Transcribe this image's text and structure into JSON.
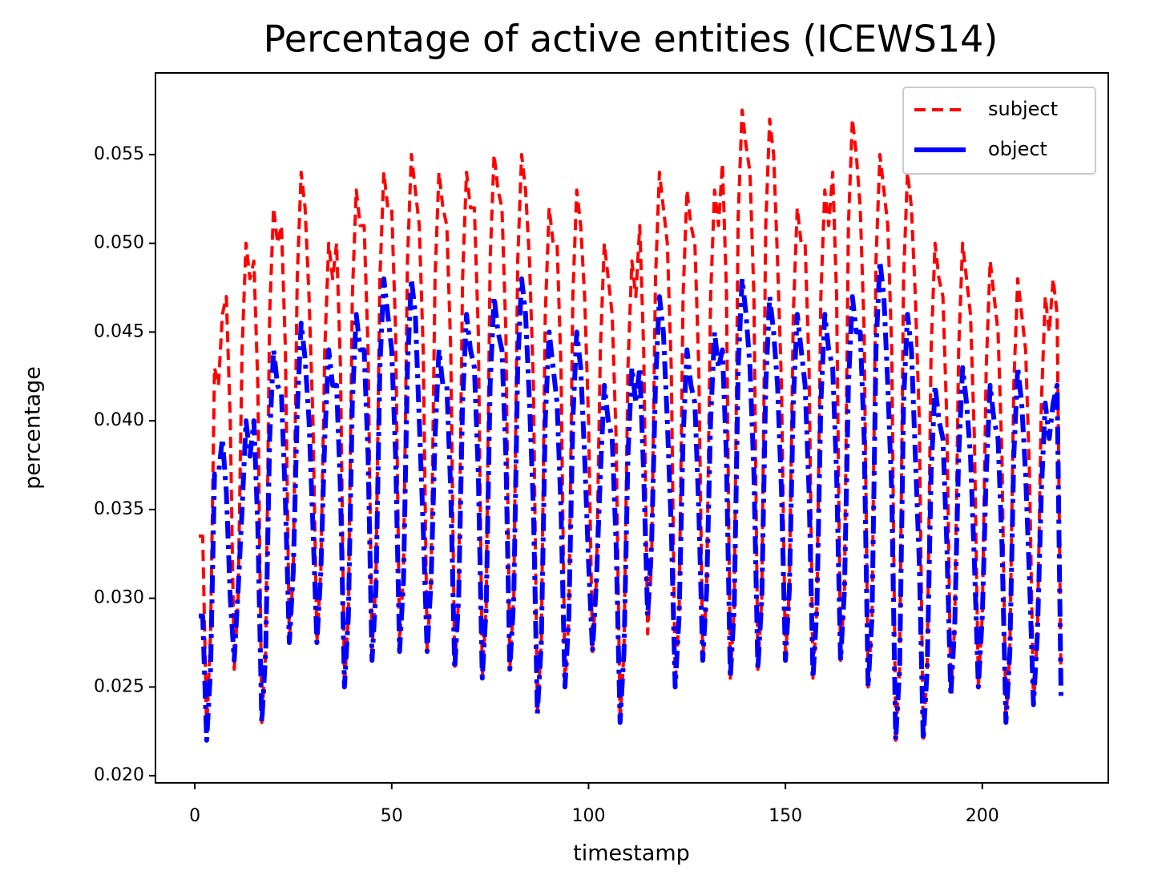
{
  "chart_data": {
    "type": "line",
    "title": "Percentage of active entities (ICEWS14)",
    "x_label": "timestamp",
    "y_label": "percentage",
    "xlim": [
      -10,
      232
    ],
    "ylim": [
      0.0196,
      0.0596
    ],
    "xticks": [
      0,
      50,
      100,
      150,
      200
    ],
    "yticks": [
      {
        "value": 0.02,
        "label": "0.020"
      },
      0.025,
      {
        "value": 0.03,
        "label": "0.030"
      },
      0.035,
      {
        "value": 0.04,
        "label": "0.040"
      },
      0.045,
      {
        "value": 0.05,
        "label": "0.050"
      },
      0.055
    ],
    "legend_position": "upper right",
    "grid": false,
    "x": [
      1,
      2,
      3,
      4,
      5,
      6,
      7,
      8,
      9,
      10,
      11,
      12,
      13,
      14,
      15,
      16,
      17,
      18,
      19,
      20,
      21,
      22,
      23,
      24,
      25,
      26,
      27,
      28,
      29,
      30,
      31,
      32,
      33,
      34,
      35,
      36,
      37,
      38,
      39,
      40,
      41,
      42,
      43,
      44,
      45,
      46,
      47,
      48,
      49,
      50,
      51,
      52,
      53,
      54,
      55,
      56,
      57,
      58,
      59,
      60,
      61,
      62,
      63,
      64,
      65,
      66,
      67,
      68,
      69,
      70,
      71,
      72,
      73,
      74,
      75,
      76,
      77,
      78,
      79,
      80,
      81,
      82,
      83,
      84,
      85,
      86,
      87,
      88,
      89,
      90,
      91,
      92,
      93,
      94,
      95,
      96,
      97,
      98,
      99,
      100,
      101,
      102,
      103,
      104,
      105,
      106,
      107,
      108,
      109,
      110,
      111,
      112,
      113,
      114,
      115,
      116,
      117,
      118,
      119,
      120,
      121,
      122,
      123,
      124,
      125,
      126,
      127,
      128,
      129,
      130,
      131,
      132,
      133,
      134,
      135,
      136,
      137,
      138,
      139,
      140,
      141,
      142,
      143,
      144,
      145,
      146,
      147,
      148,
      149,
      150,
      151,
      152,
      153,
      154,
      155,
      156,
      157,
      158,
      159,
      160,
      161,
      162,
      163,
      164,
      165,
      166,
      167,
      168,
      169,
      170,
      171,
      172,
      173,
      174,
      175,
      176,
      177,
      178,
      179,
      180,
      181,
      182,
      183,
      184,
      185,
      186,
      187,
      188,
      189,
      190,
      191,
      192,
      193,
      194,
      195,
      196,
      197,
      198,
      199,
      200,
      201,
      202,
      203,
      204,
      205,
      206,
      207,
      208,
      209,
      210,
      211,
      212,
      213,
      214,
      215,
      216,
      217,
      218,
      219,
      220
    ],
    "series": [
      {
        "name": "subject",
        "color": "#ff0000",
        "dash": "dashed",
        "values": [
          0.0335,
          0.0335,
          0.0225,
          0.028,
          0.043,
          0.042,
          0.046,
          0.047,
          0.04,
          0.026,
          0.03,
          0.044,
          0.05,
          0.048,
          0.049,
          0.042,
          0.023,
          0.027,
          0.046,
          0.052,
          0.05,
          0.051,
          0.044,
          0.0275,
          0.0315,
          0.048,
          0.054,
          0.052,
          0.047,
          0.04,
          0.0275,
          0.0315,
          0.044,
          0.05,
          0.048,
          0.05,
          0.043,
          0.025,
          0.029,
          0.047,
          0.053,
          0.051,
          0.051,
          0.044,
          0.027,
          0.031,
          0.048,
          0.054,
          0.052,
          0.052,
          0.045,
          0.0275,
          0.0315,
          0.049,
          0.055,
          0.053,
          0.051,
          0.044,
          0.027,
          0.031,
          0.048,
          0.054,
          0.052,
          0.051,
          0.044,
          0.026,
          0.03,
          0.048,
          0.054,
          0.052,
          0.052,
          0.045,
          0.0255,
          0.0295,
          0.049,
          0.055,
          0.053,
          0.052,
          0.045,
          0.026,
          0.03,
          0.049,
          0.055,
          0.053,
          0.049,
          0.042,
          0.0235,
          0.0275,
          0.046,
          0.052,
          0.05,
          0.05,
          0.043,
          0.025,
          0.029,
          0.047,
          0.053,
          0.051,
          0.047,
          0.04,
          0.027,
          0.031,
          0.044,
          0.05,
          0.048,
          0.046,
          0.039,
          0.023,
          0.027,
          0.043,
          0.049,
          0.047,
          0.051,
          0.044,
          0.028,
          0.032,
          0.048,
          0.054,
          0.052,
          0.05,
          0.043,
          0.025,
          0.029,
          0.047,
          0.053,
          0.051,
          0.05,
          0.043,
          0.0265,
          0.0305,
          0.047,
          0.053,
          0.051,
          0.0545,
          0.0475,
          0.0255,
          0.0295,
          0.0515,
          0.0575,
          0.0555,
          0.054,
          0.047,
          0.026,
          0.03,
          0.051,
          0.057,
          0.055,
          0.049,
          0.042,
          0.0265,
          0.0305,
          0.046,
          0.052,
          0.05,
          0.05,
          0.043,
          0.0255,
          0.0295,
          0.047,
          0.053,
          0.051,
          0.054,
          0.047,
          0.0265,
          0.0305,
          0.051,
          0.057,
          0.055,
          0.052,
          0.045,
          0.025,
          0.029,
          0.049,
          0.055,
          0.053,
          0.051,
          0.044,
          0.022,
          0.026,
          0.048,
          0.054,
          0.052,
          0.047,
          0.04,
          0.022,
          0.026,
          0.044,
          0.05,
          0.048,
          0.047,
          0.04,
          0.0245,
          0.0285,
          0.044,
          0.05,
          0.048,
          0.046,
          0.039,
          0.025,
          0.029,
          0.043,
          0.049,
          0.047,
          0.045,
          0.038,
          0.023,
          0.027,
          0.042,
          0.048,
          0.046,
          0.044,
          0.037,
          0.024,
          0.028,
          0.041,
          0.047,
          0.045,
          0.048,
          0.046,
          0.025
        ]
      },
      {
        "name": "object",
        "color": "#0000ff",
        "dash": "dashdot",
        "values": [
          0.029,
          0.029,
          0.022,
          0.026,
          0.037,
          0.037,
          0.039,
          0.036,
          0.03,
          0.0265,
          0.0305,
          0.035,
          0.04,
          0.038,
          0.04,
          0.034,
          0.023,
          0.027,
          0.039,
          0.044,
          0.042,
          0.0415,
          0.0355,
          0.0275,
          0.0315,
          0.0405,
          0.0455,
          0.0435,
          0.04,
          0.034,
          0.0275,
          0.0315,
          0.039,
          0.044,
          0.042,
          0.042,
          0.036,
          0.025,
          0.029,
          0.041,
          0.046,
          0.044,
          0.044,
          0.038,
          0.0265,
          0.0305,
          0.043,
          0.048,
          0.046,
          0.044,
          0.038,
          0.027,
          0.031,
          0.043,
          0.048,
          0.046,
          0.04,
          0.034,
          0.027,
          0.031,
          0.039,
          0.044,
          0.042,
          0.042,
          0.036,
          0.026,
          0.03,
          0.041,
          0.046,
          0.044,
          0.043,
          0.037,
          0.0255,
          0.0295,
          0.042,
          0.047,
          0.045,
          0.044,
          0.038,
          0.026,
          0.03,
          0.043,
          0.048,
          0.046,
          0.041,
          0.035,
          0.0235,
          0.0275,
          0.04,
          0.045,
          0.043,
          0.041,
          0.035,
          0.025,
          0.029,
          0.04,
          0.045,
          0.043,
          0.038,
          0.032,
          0.027,
          0.031,
          0.037,
          0.042,
          0.04,
          0.039,
          0.033,
          0.023,
          0.027,
          0.038,
          0.043,
          0.041,
          0.043,
          0.037,
          0.029,
          0.033,
          0.042,
          0.047,
          0.045,
          0.04,
          0.034,
          0.025,
          0.029,
          0.039,
          0.044,
          0.042,
          0.041,
          0.035,
          0.0265,
          0.0305,
          0.04,
          0.045,
          0.043,
          0.044,
          0.038,
          0.0255,
          0.0295,
          0.043,
          0.048,
          0.046,
          0.043,
          0.037,
          0.026,
          0.03,
          0.042,
          0.047,
          0.045,
          0.042,
          0.036,
          0.0265,
          0.0305,
          0.041,
          0.046,
          0.044,
          0.042,
          0.036,
          0.0255,
          0.0295,
          0.041,
          0.046,
          0.044,
          0.043,
          0.037,
          0.0265,
          0.0305,
          0.042,
          0.047,
          0.045,
          0.045,
          0.039,
          0.025,
          0.029,
          0.044,
          0.049,
          0.047,
          0.042,
          0.036,
          0.022,
          0.026,
          0.041,
          0.046,
          0.044,
          0.038,
          0.032,
          0.022,
          0.026,
          0.037,
          0.042,
          0.04,
          0.039,
          0.033,
          0.0245,
          0.0285,
          0.038,
          0.043,
          0.041,
          0.038,
          0.032,
          0.025,
          0.029,
          0.037,
          0.042,
          0.04,
          0.039,
          0.033,
          0.023,
          0.027,
          0.038,
          0.043,
          0.041,
          0.037,
          0.031,
          0.024,
          0.028,
          0.036,
          0.041,
          0.039,
          0.041,
          0.042,
          0.0245
        ]
      }
    ]
  }
}
